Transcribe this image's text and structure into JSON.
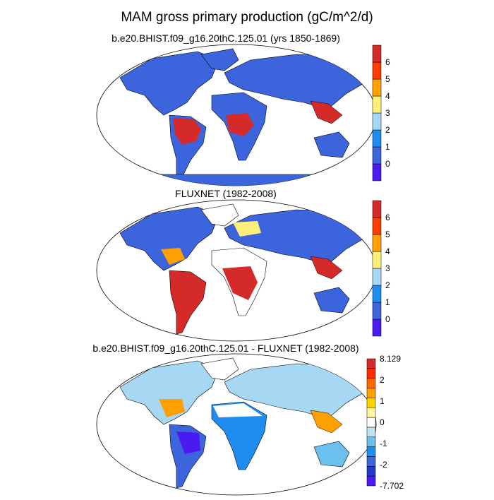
{
  "title": "MAM gross primary production (gC/m^2/d)",
  "panels": [
    {
      "subtitle": "b.e20.BHIST.f09_g16.20thC.125.01 (yrs 1850-1869)",
      "colorbar": {
        "colors": [
          "#4a1af0",
          "#3c64dc",
          "#1f8cf0",
          "#a6d8f4",
          "#fff07a",
          "#ffa000",
          "#ff3d00",
          "#d42a2a"
        ],
        "labels": [
          "0",
          "1",
          "2",
          "3",
          "4",
          "5",
          "6"
        ]
      }
    },
    {
      "subtitle": "FLUXNET (1982-2008)",
      "colorbar": {
        "colors": [
          "#4a1af0",
          "#3c64dc",
          "#1f8cf0",
          "#a6d8f4",
          "#fff07a",
          "#ffa000",
          "#ff3d00",
          "#d42a2a"
        ],
        "labels": [
          "0",
          "1",
          "2",
          "3",
          "4",
          "5",
          "6"
        ]
      }
    },
    {
      "subtitle": "b.e20.BHIST.f09_g16.20thC.125.01 - FLUXNET (1982-2008)",
      "colorbar": {
        "colors": [
          "#4a1af0",
          "#2438d0",
          "#3c64dc",
          "#1f8cf0",
          "#6cc0ee",
          "#bfe4f6",
          "#ffffff",
          "#fff6a8",
          "#ffd200",
          "#ffa000",
          "#ff6a00",
          "#ff2a00",
          "#d42a2a"
        ],
        "labels": [
          "8.129",
          "2",
          "1",
          "0",
          "-1",
          "-2",
          "-7.702"
        ]
      }
    }
  ]
}
